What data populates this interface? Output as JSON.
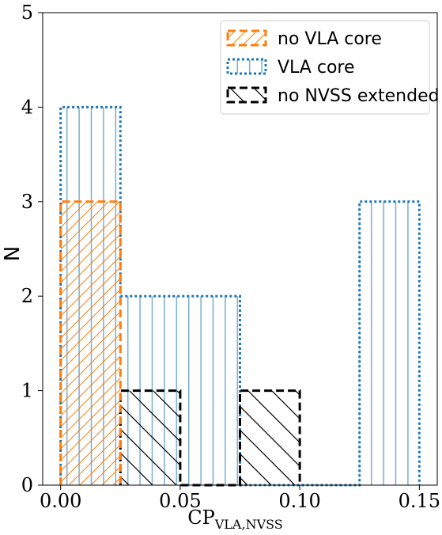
{
  "chart_data": {
    "type": "bar",
    "subtype": "step-histogram",
    "title": "",
    "xlabel": "CP",
    "xlabel_subscript": "VLA,NVSS",
    "ylabel": "N",
    "xlim": [
      -0.0075,
      0.1575
    ],
    "ylim": [
      0,
      5
    ],
    "xticks": [
      0.0,
      0.05,
      0.1,
      0.15
    ],
    "xtick_labels": [
      "0.00",
      "0.05",
      "0.10",
      "0.15"
    ],
    "yticks": [
      0,
      1,
      2,
      3,
      4,
      5
    ],
    "ytick_labels": [
      "0",
      "1",
      "2",
      "3",
      "4",
      "5"
    ],
    "bin_edges": [
      0.0,
      0.025,
      0.05,
      0.075,
      0.1,
      0.125,
      0.15
    ],
    "grid": false,
    "legend_position": "top-right",
    "series": [
      {
        "name": "no VLA core",
        "values": [
          3,
          0,
          0,
          0,
          0,
          0
        ],
        "color": "#ff7f0e",
        "linestyle": "dashed",
        "hatch": "forward-diagonal"
      },
      {
        "name": "VLA core",
        "values": [
          4,
          2,
          2,
          0,
          0,
          3
        ],
        "color": "#1f77b4",
        "linestyle": "dotted",
        "hatch": "vertical"
      },
      {
        "name": "no NVSS extended",
        "values": [
          0,
          1,
          0,
          1,
          0,
          0
        ],
        "color": "#000000",
        "linestyle": "dashed",
        "hatch": "back-diagonal"
      }
    ]
  }
}
